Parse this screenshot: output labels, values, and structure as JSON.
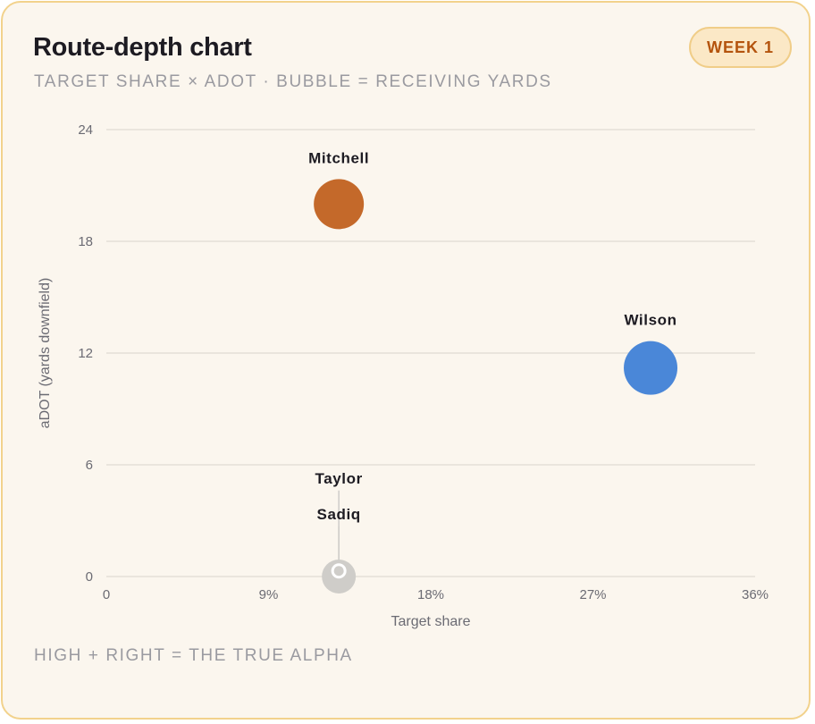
{
  "header": {
    "title": "Route-depth chart",
    "subtitle": "TARGET SHARE × ADOT · BUBBLE = RECEIVING YARDS",
    "badge": "WEEK 1"
  },
  "footer": {
    "note": "HIGH + RIGHT = THE TRUE ALPHA"
  },
  "chart_data": {
    "type": "scatter",
    "subtype": "bubble",
    "xlabel": "Target share",
    "ylabel": "aDOT (yards downfield)",
    "xlim": [
      0,
      36
    ],
    "ylim": [
      0,
      24
    ],
    "x_ticks": [
      0,
      9,
      18,
      27,
      36
    ],
    "x_tick_labels": [
      "0",
      "9%",
      "18%",
      "27%",
      "36%"
    ],
    "y_ticks": [
      0,
      6,
      12,
      18,
      24
    ],
    "y_tick_labels": [
      "0",
      "6",
      "12",
      "18",
      "24"
    ],
    "grid": "horizontal",
    "points": [
      {
        "label": "Mitchell",
        "x": 12.9,
        "y": 20.0,
        "size": 28,
        "color": "#c4692a"
      },
      {
        "label": "Wilson",
        "x": 30.2,
        "y": 11.2,
        "size": 30,
        "color": "#4a87d8"
      },
      {
        "label": "Sadiq",
        "x": 12.9,
        "y": 0.0,
        "size": 19,
        "color": "#cfcdc9"
      },
      {
        "label": "Taylor",
        "x": 12.9,
        "y": 0.3,
        "size": 7,
        "color": "#cfcdc9"
      }
    ]
  }
}
